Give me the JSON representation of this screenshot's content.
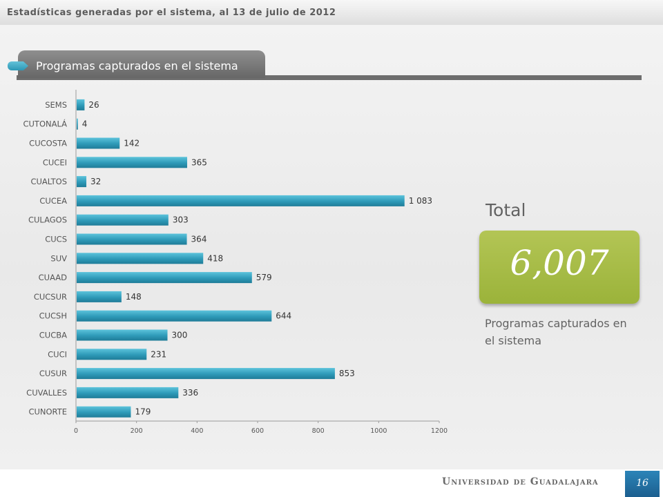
{
  "header": {
    "text": "Estadísticas generadas por el sistema, al 13 de julio de 2012"
  },
  "section": {
    "title": "Programas capturados en el sistema"
  },
  "summary": {
    "label": "Total",
    "value": "6,007",
    "caption": "Programas capturados en el sistema"
  },
  "footer": {
    "university": "Universidad de Guadalajara",
    "page_number": "16"
  },
  "colors": {
    "bar": "#2e9ab8",
    "total_box": "#a6bc45",
    "page_box": "#236f9f",
    "section_tab": "#7a7a7a"
  },
  "chart_data": {
    "type": "bar",
    "orientation": "horizontal",
    "categories": [
      "SEMS",
      "CUTONALÁ",
      "CUCOSTA",
      "CUCEI",
      "CUALTOS",
      "CUCEA",
      "CULAGOS",
      "CUCS",
      "SUV",
      "CUAAD",
      "CUCSUR",
      "CUCSH",
      "CUCBA",
      "CUCI",
      "CUSUR",
      "CUVALLES",
      "CUNORTE"
    ],
    "values": [
      26,
      4,
      142,
      365,
      32,
      1083,
      303,
      364,
      418,
      579,
      148,
      644,
      300,
      231,
      853,
      336,
      179
    ],
    "data_labels": [
      "26",
      "4",
      "142",
      "365",
      "32",
      "1 083",
      "303",
      "364",
      "418",
      "579",
      "148",
      "644",
      "300",
      "231",
      "853",
      "336",
      "179"
    ],
    "xlim": [
      0,
      1200
    ],
    "xticks": [
      "0",
      "200",
      "400",
      "600",
      "800",
      "1000",
      "1200"
    ],
    "grid": false,
    "legend": "none"
  }
}
